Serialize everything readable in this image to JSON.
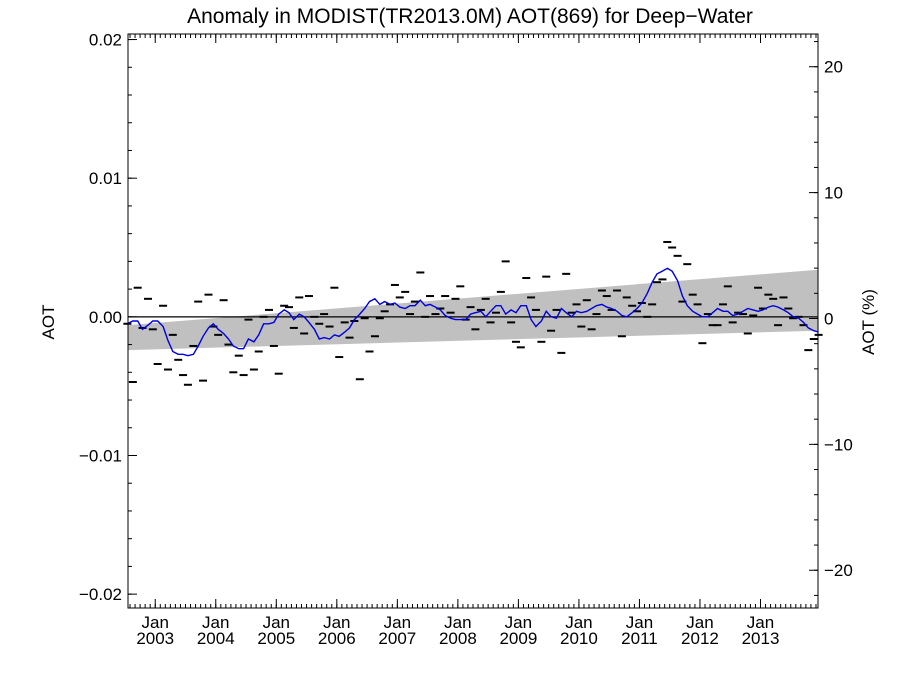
{
  "chart_data": {
    "type": "line",
    "title": "Anomaly in MODIST(TR2013.0M) AOT(869) for Deep−Water",
    "ylabel": "AOT",
    "y2label": "AOT (%)",
    "xlabel": "",
    "ylim": [
      -0.021,
      0.0204
    ],
    "y2lim": [
      -23,
      22.6
    ],
    "xlim": [
      2002.55,
      2013.95
    ],
    "grid": false,
    "legend": "none",
    "yticks": [
      {
        "v": 0.02,
        "label": "0.02"
      },
      {
        "v": 0.01,
        "label": "0.01"
      },
      {
        "v": 0.0,
        "label": "0.00"
      },
      {
        "v": -0.01,
        "label": "−0.01"
      },
      {
        "v": -0.02,
        "label": "−0.02"
      }
    ],
    "y2ticks": [
      {
        "v": 20,
        "label": "20"
      },
      {
        "v": 10,
        "label": "10"
      },
      {
        "v": 0,
        "label": "0"
      },
      {
        "v": -10,
        "label": "−10"
      },
      {
        "v": -20,
        "label": "−20"
      }
    ],
    "xticks": [
      {
        "v": 2003.0,
        "month": "Jan",
        "year": "2003"
      },
      {
        "v": 2004.0,
        "month": "Jan",
        "year": "2004"
      },
      {
        "v": 2005.0,
        "month": "Jan",
        "year": "2005"
      },
      {
        "v": 2006.0,
        "month": "Jan",
        "year": "2006"
      },
      {
        "v": 2007.0,
        "month": "Jan",
        "year": "2007"
      },
      {
        "v": 2008.0,
        "month": "Jan",
        "year": "2008"
      },
      {
        "v": 2009.0,
        "month": "Jan",
        "year": "2009"
      },
      {
        "v": 2010.0,
        "month": "Jan",
        "year": "2010"
      },
      {
        "v": 2011.0,
        "month": "Jan",
        "year": "2011"
      },
      {
        "v": 2012.0,
        "month": "Jan",
        "year": "2012"
      },
      {
        "v": 2013.0,
        "month": "Jan",
        "year": "2013"
      }
    ],
    "band": {
      "color": "#c0c0c0",
      "x": [
        2002.55,
        2013.95
      ],
      "upper": [
        -0.0006,
        0.0034
      ],
      "lower": [
        -0.0024,
        -0.001
      ]
    },
    "zero_line": {
      "y": 0.0,
      "color": "#000000"
    },
    "monthly": {
      "color": "#000000",
      "points": [
        [
          2002.54,
          -0.0005
        ],
        [
          2002.63,
          -0.0047
        ],
        [
          2002.71,
          0.0021
        ],
        [
          2002.79,
          -0.0008
        ],
        [
          2002.88,
          0.0013
        ],
        [
          2002.96,
          -0.0009
        ],
        [
          2003.04,
          -0.0034
        ],
        [
          2003.13,
          0.0008
        ],
        [
          2003.21,
          -0.0038
        ],
        [
          2003.29,
          -0.0013
        ],
        [
          2003.38,
          -0.0031
        ],
        [
          2003.46,
          -0.0042
        ],
        [
          2003.54,
          -0.0049
        ],
        [
          2003.63,
          -0.0021
        ],
        [
          2003.71,
          0.0011
        ],
        [
          2003.79,
          -0.0046
        ],
        [
          2003.88,
          0.0016
        ],
        [
          2003.96,
          -0.0007
        ],
        [
          2004.04,
          -0.0013
        ],
        [
          2004.13,
          0.0012
        ],
        [
          2004.21,
          -0.002
        ],
        [
          2004.29,
          -0.004
        ],
        [
          2004.38,
          -0.0028
        ],
        [
          2004.46,
          -0.0042
        ],
        [
          2004.54,
          -0.0002
        ],
        [
          2004.63,
          -0.0038
        ],
        [
          2004.71,
          -0.0025
        ],
        [
          2004.79,
          0.0
        ],
        [
          2004.88,
          0.0005
        ],
        [
          2004.96,
          -0.0021
        ],
        [
          2005.04,
          -0.0041
        ],
        [
          2005.13,
          0.0008
        ],
        [
          2005.21,
          0.0007
        ],
        [
          2005.29,
          -0.0008
        ],
        [
          2005.38,
          0.0014
        ],
        [
          2005.46,
          -0.0012
        ],
        [
          2005.54,
          0.0015
        ],
        [
          2005.63,
          0.0
        ],
        [
          2005.71,
          -0.0005
        ],
        [
          2005.79,
          0.0002
        ],
        [
          2005.88,
          -0.0007
        ],
        [
          2005.96,
          0.0021
        ],
        [
          2006.04,
          -0.0029
        ],
        [
          2006.13,
          -0.0004
        ],
        [
          2006.21,
          -0.0015
        ],
        [
          2006.29,
          -0.0003
        ],
        [
          2006.38,
          -0.0045
        ],
        [
          2006.46,
          -0.0001
        ],
        [
          2006.54,
          -0.0025
        ],
        [
          2006.63,
          -0.0014
        ],
        [
          2006.71,
          -0.0001
        ],
        [
          2006.79,
          0.0004
        ],
        [
          2006.88,
          0.0009
        ],
        [
          2006.96,
          0.0023
        ],
        [
          2007.04,
          0.0014
        ],
        [
          2007.13,
          0.0018
        ],
        [
          2007.21,
          0.0002
        ],
        [
          2007.29,
          0.0011
        ],
        [
          2007.38,
          0.0032
        ],
        [
          2007.46,
          0.0
        ],
        [
          2007.54,
          0.0015
        ],
        [
          2007.63,
          0.0002
        ],
        [
          2007.71,
          0.0006
        ],
        [
          2007.79,
          0.0015
        ],
        [
          2007.88,
          0.0003
        ],
        [
          2007.96,
          0.0013
        ],
        [
          2008.04,
          0.0022
        ],
        [
          2008.13,
          -0.0002
        ],
        [
          2008.21,
          0.0007
        ],
        [
          2008.29,
          -0.0009
        ],
        [
          2008.38,
          0.0005
        ],
        [
          2008.46,
          0.0013
        ],
        [
          2008.54,
          -0.0004
        ],
        [
          2008.63,
          0.0003
        ],
        [
          2008.71,
          0.0018
        ],
        [
          2008.79,
          0.004
        ],
        [
          2008.88,
          -0.0004
        ],
        [
          2008.96,
          -0.0018
        ],
        [
          2009.04,
          -0.0022
        ],
        [
          2009.13,
          0.0028
        ],
        [
          2009.21,
          0.0014
        ],
        [
          2009.29,
          0.0005
        ],
        [
          2009.38,
          -0.0018
        ],
        [
          2009.46,
          0.0029
        ],
        [
          2009.54,
          -0.001
        ],
        [
          2009.63,
          0.0005
        ],
        [
          2009.71,
          -0.0026
        ],
        [
          2009.79,
          0.0031
        ],
        [
          2009.88,
          0.0003
        ],
        [
          2009.96,
          0.0009
        ],
        [
          2010.04,
          -0.0007
        ],
        [
          2010.13,
          0.0012
        ],
        [
          2010.21,
          -0.0009
        ],
        [
          2010.29,
          0.0002
        ],
        [
          2010.38,
          0.0019
        ],
        [
          2010.46,
          0.0015
        ],
        [
          2010.54,
          0.0005
        ],
        [
          2010.63,
          0.0019
        ],
        [
          2010.71,
          -0.0014
        ],
        [
          2010.79,
          0.0014
        ],
        [
          2010.88,
          0.0008
        ],
        [
          2010.96,
          0.0004
        ],
        [
          2011.04,
          0.001
        ],
        [
          2011.13,
          0.0
        ],
        [
          2011.21,
          0.0009
        ],
        [
          2011.29,
          0.0025
        ],
        [
          2011.38,
          0.0027
        ],
        [
          2011.46,
          0.0054
        ],
        [
          2011.54,
          0.005
        ],
        [
          2011.63,
          0.0044
        ],
        [
          2011.71,
          0.0011
        ],
        [
          2011.79,
          0.0038
        ],
        [
          2011.88,
          0.0016
        ],
        [
          2011.96,
          0.0009
        ],
        [
          2012.04,
          -0.0019
        ],
        [
          2012.13,
          0.0002
        ],
        [
          2012.21,
          -0.0006
        ],
        [
          2012.29,
          -0.0006
        ],
        [
          2012.38,
          0.0009
        ],
        [
          2012.46,
          0.0022
        ],
        [
          2012.54,
          -0.0004
        ],
        [
          2012.63,
          0.0003
        ],
        [
          2012.71,
          0.0002
        ],
        [
          2012.79,
          -0.0012
        ],
        [
          2012.88,
          0.0001
        ],
        [
          2012.96,
          0.0021
        ],
        [
          2013.04,
          0.0006
        ],
        [
          2013.13,
          0.0016
        ],
        [
          2013.21,
          0.0013
        ],
        [
          2013.29,
          -0.0006
        ],
        [
          2013.38,
          0.0014
        ],
        [
          2013.46,
          0.0006
        ],
        [
          2013.54,
          -0.0001
        ],
        [
          2013.63,
          0.0
        ],
        [
          2013.71,
          -0.0006
        ],
        [
          2013.79,
          -0.0024
        ],
        [
          2013.88,
          -0.0016
        ],
        [
          2013.96,
          -0.0013
        ]
      ]
    },
    "smoothed": {
      "color": "#0000dd",
      "points": [
        [
          2002.54,
          -0.0005
        ],
        [
          2002.63,
          -0.0003
        ],
        [
          2002.71,
          -0.0003
        ],
        [
          2002.79,
          -0.0009
        ],
        [
          2002.88,
          -0.0006
        ],
        [
          2002.96,
          -0.0003
        ],
        [
          2003.04,
          -0.0003
        ],
        [
          2003.13,
          -0.0007
        ],
        [
          2003.21,
          -0.0017
        ],
        [
          2003.29,
          -0.0025
        ],
        [
          2003.38,
          -0.0027
        ],
        [
          2003.46,
          -0.0027
        ],
        [
          2003.54,
          -0.0028
        ],
        [
          2003.63,
          -0.0027
        ],
        [
          2003.71,
          -0.0021
        ],
        [
          2003.79,
          -0.0014
        ],
        [
          2003.88,
          -0.0008
        ],
        [
          2003.96,
          -0.0005
        ],
        [
          2004.04,
          -0.0009
        ],
        [
          2004.13,
          -0.0012
        ],
        [
          2004.21,
          -0.0016
        ],
        [
          2004.29,
          -0.0021
        ],
        [
          2004.38,
          -0.0023
        ],
        [
          2004.46,
          -0.0023
        ],
        [
          2004.54,
          -0.0016
        ],
        [
          2004.63,
          -0.0018
        ],
        [
          2004.71,
          -0.0013
        ],
        [
          2004.79,
          -0.0005
        ],
        [
          2004.88,
          -0.0005
        ],
        [
          2004.96,
          -0.0004
        ],
        [
          2005.04,
          0.0002
        ],
        [
          2005.13,
          0.0005
        ],
        [
          2005.21,
          0.0003
        ],
        [
          2005.29,
          -0.0002
        ],
        [
          2005.38,
          0.0002
        ],
        [
          2005.46,
          0.0
        ],
        [
          2005.54,
          -0.0004
        ],
        [
          2005.63,
          -0.0009
        ],
        [
          2005.71,
          -0.0016
        ],
        [
          2005.79,
          -0.0015
        ],
        [
          2005.88,
          -0.0016
        ],
        [
          2005.96,
          -0.0013
        ],
        [
          2006.04,
          -0.0014
        ],
        [
          2006.13,
          -0.0011
        ],
        [
          2006.21,
          -0.0008
        ],
        [
          2006.29,
          -0.0002
        ],
        [
          2006.38,
          0.0002
        ],
        [
          2006.46,
          0.0006
        ],
        [
          2006.54,
          0.0011
        ],
        [
          2006.63,
          0.0013
        ],
        [
          2006.71,
          0.0009
        ],
        [
          2006.79,
          0.0011
        ],
        [
          2006.88,
          0.0009
        ],
        [
          2006.96,
          0.001
        ],
        [
          2007.04,
          0.0007
        ],
        [
          2007.13,
          0.0006
        ],
        [
          2007.21,
          0.0008
        ],
        [
          2007.29,
          0.0008
        ],
        [
          2007.38,
          0.0012
        ],
        [
          2007.46,
          0.0008
        ],
        [
          2007.54,
          0.0009
        ],
        [
          2007.63,
          0.0007
        ],
        [
          2007.71,
          0.0005
        ],
        [
          2007.79,
          0.0001
        ],
        [
          2007.88,
          -0.0001
        ],
        [
          2007.96,
          -0.0002
        ],
        [
          2008.04,
          -0.0002
        ],
        [
          2008.13,
          -0.0002
        ],
        [
          2008.21,
          0.0002
        ],
        [
          2008.29,
          0.0003
        ],
        [
          2008.38,
          0.0004
        ],
        [
          2008.46,
          0.0
        ],
        [
          2008.54,
          0.0004
        ],
        [
          2008.63,
          0.0008
        ],
        [
          2008.71,
          0.0008
        ],
        [
          2008.79,
          0.0002
        ],
        [
          2008.88,
          0.0005
        ],
        [
          2008.96,
          0.0003
        ],
        [
          2009.04,
          0.0008
        ],
        [
          2009.13,
          0.0008
        ],
        [
          2009.21,
          -0.0002
        ],
        [
          2009.29,
          -0.0007
        ],
        [
          2009.38,
          -0.0003
        ],
        [
          2009.46,
          0.0004
        ],
        [
          2009.54,
          0.0
        ],
        [
          2009.63,
          -0.0001
        ],
        [
          2009.71,
          0.0006
        ],
        [
          2009.79,
          0.0003
        ],
        [
          2009.88,
          0.0
        ],
        [
          2009.96,
          0.0004
        ],
        [
          2010.04,
          0.0003
        ],
        [
          2010.13,
          0.0004
        ],
        [
          2010.21,
          0.0006
        ],
        [
          2010.29,
          0.0008
        ],
        [
          2010.38,
          0.0009
        ],
        [
          2010.46,
          0.0007
        ],
        [
          2010.54,
          0.0006
        ],
        [
          2010.63,
          0.0004
        ],
        [
          2010.71,
          0.0001
        ],
        [
          2010.79,
          0.0
        ],
        [
          2010.88,
          0.0003
        ],
        [
          2010.96,
          0.0006
        ],
        [
          2011.04,
          0.001
        ],
        [
          2011.13,
          0.0017
        ],
        [
          2011.21,
          0.0025
        ],
        [
          2011.29,
          0.0031
        ],
        [
          2011.38,
          0.0033
        ],
        [
          2011.46,
          0.0035
        ],
        [
          2011.54,
          0.0033
        ],
        [
          2011.63,
          0.0026
        ],
        [
          2011.71,
          0.0015
        ],
        [
          2011.79,
          0.0008
        ],
        [
          2011.88,
          0.0004
        ],
        [
          2011.96,
          0.0002
        ],
        [
          2012.04,
          0.0
        ],
        [
          2012.13,
          0.0
        ],
        [
          2012.21,
          0.0003
        ],
        [
          2012.29,
          0.0006
        ],
        [
          2012.38,
          0.0004
        ],
        [
          2012.46,
          0.0004
        ],
        [
          2012.54,
          0.0001
        ],
        [
          2012.63,
          0.0002
        ],
        [
          2012.71,
          0.0004
        ],
        [
          2012.79,
          0.0006
        ],
        [
          2012.88,
          0.0005
        ],
        [
          2012.96,
          0.0004
        ],
        [
          2013.04,
          0.0005
        ],
        [
          2013.13,
          0.0007
        ],
        [
          2013.21,
          0.0008
        ],
        [
          2013.29,
          0.0007
        ],
        [
          2013.38,
          0.0005
        ],
        [
          2013.46,
          0.0003
        ],
        [
          2013.54,
          0.0
        ],
        [
          2013.63,
          -0.0001
        ],
        [
          2013.71,
          -0.0004
        ],
        [
          2013.79,
          -0.0008
        ],
        [
          2013.88,
          -0.001
        ],
        [
          2013.96,
          -0.0011
        ]
      ]
    }
  }
}
